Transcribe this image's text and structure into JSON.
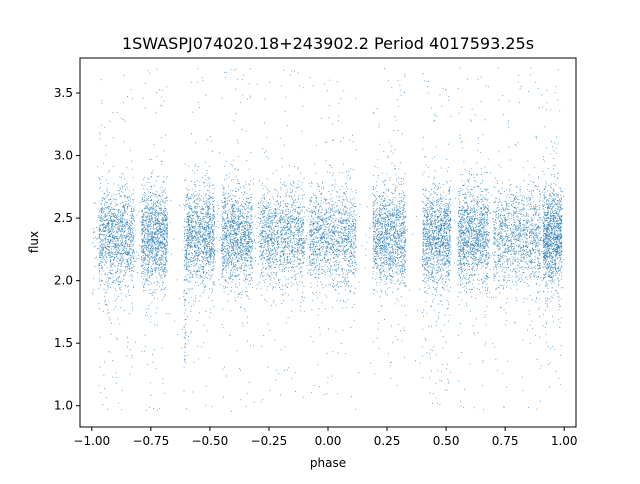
{
  "chart_data": {
    "type": "scatter",
    "title": "1SWASPJ074020.18+243902.2 Period 4017593.25s",
    "xlabel": "phase",
    "ylabel": "flux",
    "xlim": [
      -1.05,
      1.05
    ],
    "ylim": [
      0.83,
      3.78
    ],
    "xticks": [
      -1.0,
      -0.75,
      -0.5,
      -0.25,
      0.0,
      0.25,
      0.5,
      0.75,
      1.0
    ],
    "xtick_labels": [
      "−1.00",
      "−0.75",
      "−0.50",
      "−0.25",
      "0.00",
      "0.25",
      "0.50",
      "0.75",
      "1.00"
    ],
    "yticks": [
      1.0,
      1.5,
      2.0,
      2.5,
      3.0,
      3.5
    ],
    "ytick_labels": [
      "1.0",
      "1.5",
      "2.0",
      "2.5",
      "3.0",
      "3.5"
    ],
    "grid": false,
    "marker_color": "#1f77b4",
    "phase_range": [
      -1.0,
      1.0
    ],
    "flux_core_center": 2.35,
    "flux_core_spread": 0.2,
    "flux_min": 0.95,
    "flux_max": 3.7,
    "dense_phase_clusters": [
      [
        -0.97,
        -0.82
      ],
      [
        -0.79,
        -0.68
      ],
      [
        -0.61,
        -0.48
      ],
      [
        -0.45,
        -0.32
      ],
      [
        -0.29,
        -0.1
      ],
      [
        -0.08,
        0.12
      ],
      [
        0.19,
        0.33
      ],
      [
        0.4,
        0.52
      ],
      [
        0.55,
        0.68
      ],
      [
        0.7,
        0.9
      ],
      [
        0.91,
        0.99
      ]
    ],
    "dip_regions": [
      {
        "phase_range": [
          -0.66,
          -0.6
        ],
        "min_flux": 1.3
      },
      {
        "phase_range": [
          0.34,
          0.4
        ],
        "min_flux": 1.3
      }
    ],
    "sparse_gaps": [
      [
        -0.82,
        -0.79
      ],
      [
        -0.68,
        -0.61
      ],
      [
        0.12,
        0.19
      ],
      [
        0.33,
        0.4
      ],
      [
        0.52,
        0.55
      ]
    ],
    "approx_point_count": 14000
  }
}
